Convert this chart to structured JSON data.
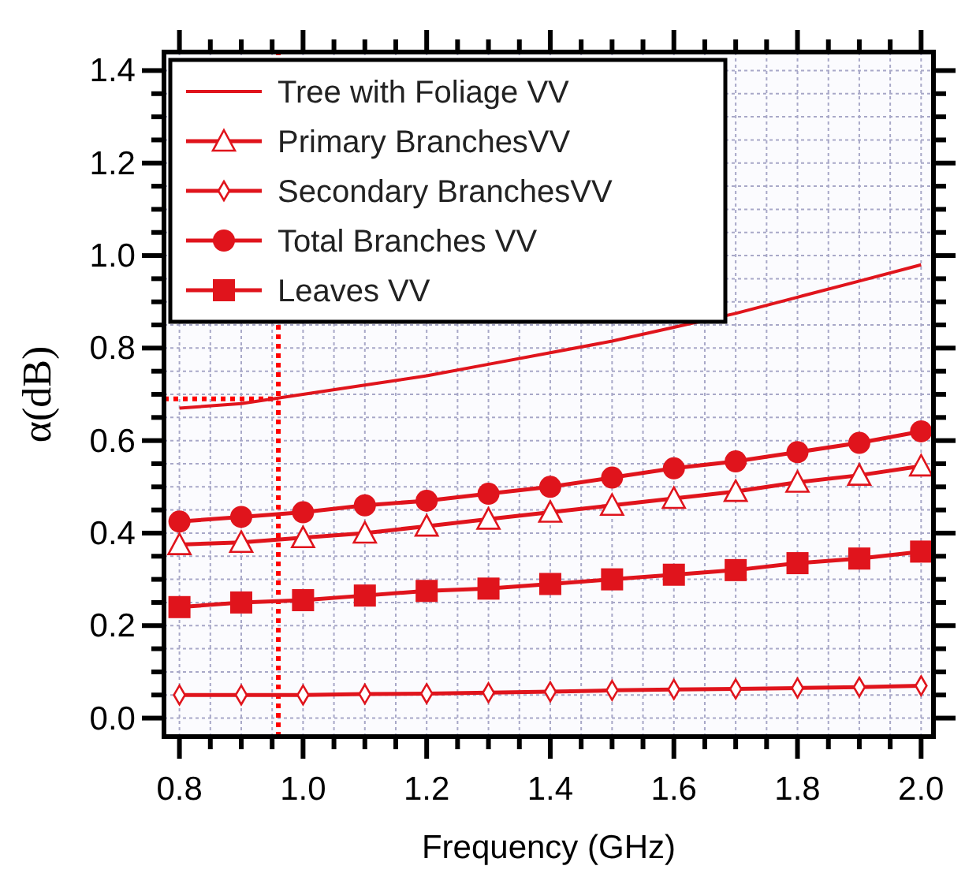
{
  "chart_data": {
    "type": "line",
    "xlabel": "Frequency (GHz)",
    "ylabel": "α(dB)",
    "x": [
      0.8,
      0.9,
      1.0,
      1.1,
      1.2,
      1.3,
      1.4,
      1.5,
      1.6,
      1.7,
      1.8,
      1.9,
      2.0
    ],
    "series": [
      {
        "name": "Tree with Foliage VV",
        "color": "#e0141c",
        "marker": "none",
        "values": [
          0.67,
          0.68,
          0.7,
          0.72,
          0.74,
          0.765,
          0.79,
          0.815,
          0.845,
          0.875,
          0.91,
          0.945,
          0.98
        ]
      },
      {
        "name": "Primary BranchesVV",
        "color": "#e0141c",
        "marker": "triangle",
        "values": [
          0.375,
          0.38,
          0.39,
          0.4,
          0.415,
          0.43,
          0.445,
          0.46,
          0.475,
          0.49,
          0.51,
          0.525,
          0.545
        ]
      },
      {
        "name": "Secondary BranchesVV",
        "color": "#e0141c",
        "marker": "diamond",
        "values": [
          0.05,
          0.05,
          0.05,
          0.052,
          0.053,
          0.055,
          0.057,
          0.06,
          0.062,
          0.063,
          0.065,
          0.067,
          0.07
        ]
      },
      {
        "name": "Total Branches VV",
        "color": "#e0141c",
        "marker": "circle",
        "values": [
          0.425,
          0.435,
          0.445,
          0.46,
          0.47,
          0.485,
          0.5,
          0.52,
          0.54,
          0.555,
          0.575,
          0.595,
          0.62
        ]
      },
      {
        "name": "Leaves VV",
        "color": "#e0141c",
        "marker": "square",
        "values": [
          0.24,
          0.25,
          0.255,
          0.265,
          0.275,
          0.28,
          0.29,
          0.3,
          0.31,
          0.32,
          0.335,
          0.345,
          0.36
        ]
      }
    ],
    "xlim": [
      0.775,
      2.02
    ],
    "ylim": [
      -0.04,
      1.44
    ],
    "xticks": [
      {
        "value": 0.8,
        "label": "0.8"
      },
      {
        "value": 0.85,
        "label": null
      },
      {
        "value": 0.9,
        "label": null
      },
      {
        "value": 0.95,
        "label": null
      },
      {
        "value": 1.0,
        "label": "1.0"
      },
      {
        "value": 1.05,
        "label": null
      },
      {
        "value": 1.1,
        "label": null
      },
      {
        "value": 1.15,
        "label": null
      },
      {
        "value": 1.2,
        "label": "1.2"
      },
      {
        "value": 1.25,
        "label": null
      },
      {
        "value": 1.3,
        "label": null
      },
      {
        "value": 1.35,
        "label": null
      },
      {
        "value": 1.4,
        "label": "1.4"
      },
      {
        "value": 1.45,
        "label": null
      },
      {
        "value": 1.5,
        "label": null
      },
      {
        "value": 1.55,
        "label": null
      },
      {
        "value": 1.6,
        "label": "1.6"
      },
      {
        "value": 1.65,
        "label": null
      },
      {
        "value": 1.7,
        "label": null
      },
      {
        "value": 1.75,
        "label": null
      },
      {
        "value": 1.8,
        "label": "1.8"
      },
      {
        "value": 1.85,
        "label": null
      },
      {
        "value": 1.9,
        "label": null
      },
      {
        "value": 1.95,
        "label": null
      },
      {
        "value": 2.0,
        "label": "2.0"
      }
    ],
    "yticks": [
      {
        "value": 0.0,
        "label": "0.0"
      },
      {
        "value": 0.05,
        "label": null
      },
      {
        "value": 0.1,
        "label": null
      },
      {
        "value": 0.15,
        "label": null
      },
      {
        "value": 0.2,
        "label": "0.2"
      },
      {
        "value": 0.25,
        "label": null
      },
      {
        "value": 0.3,
        "label": null
      },
      {
        "value": 0.35,
        "label": null
      },
      {
        "value": 0.4,
        "label": "0.4"
      },
      {
        "value": 0.45,
        "label": null
      },
      {
        "value": 0.5,
        "label": null
      },
      {
        "value": 0.55,
        "label": null
      },
      {
        "value": 0.6,
        "label": "0.6"
      },
      {
        "value": 0.65,
        "label": null
      },
      {
        "value": 0.7,
        "label": null
      },
      {
        "value": 0.75,
        "label": null
      },
      {
        "value": 0.8,
        "label": "0.8"
      },
      {
        "value": 0.85,
        "label": null
      },
      {
        "value": 0.9,
        "label": null
      },
      {
        "value": 0.95,
        "label": null
      },
      {
        "value": 1.0,
        "label": "1.0"
      },
      {
        "value": 1.05,
        "label": null
      },
      {
        "value": 1.1,
        "label": null
      },
      {
        "value": 1.15,
        "label": null
      },
      {
        "value": 1.2,
        "label": "1.2"
      },
      {
        "value": 1.25,
        "label": null
      },
      {
        "value": 1.3,
        "label": null
      },
      {
        "value": 1.35,
        "label": null
      },
      {
        "value": 1.4,
        "label": "1.4"
      }
    ],
    "ref_lines": [
      {
        "axis": "x",
        "value": 0.96,
        "color": "#ff0000",
        "line_style": "dotted"
      },
      {
        "axis": "y",
        "value": 0.69,
        "color": "#ff0000",
        "line_style": "dotted"
      }
    ],
    "grid": true,
    "legend": "top left",
    "line_style": "solid"
  }
}
